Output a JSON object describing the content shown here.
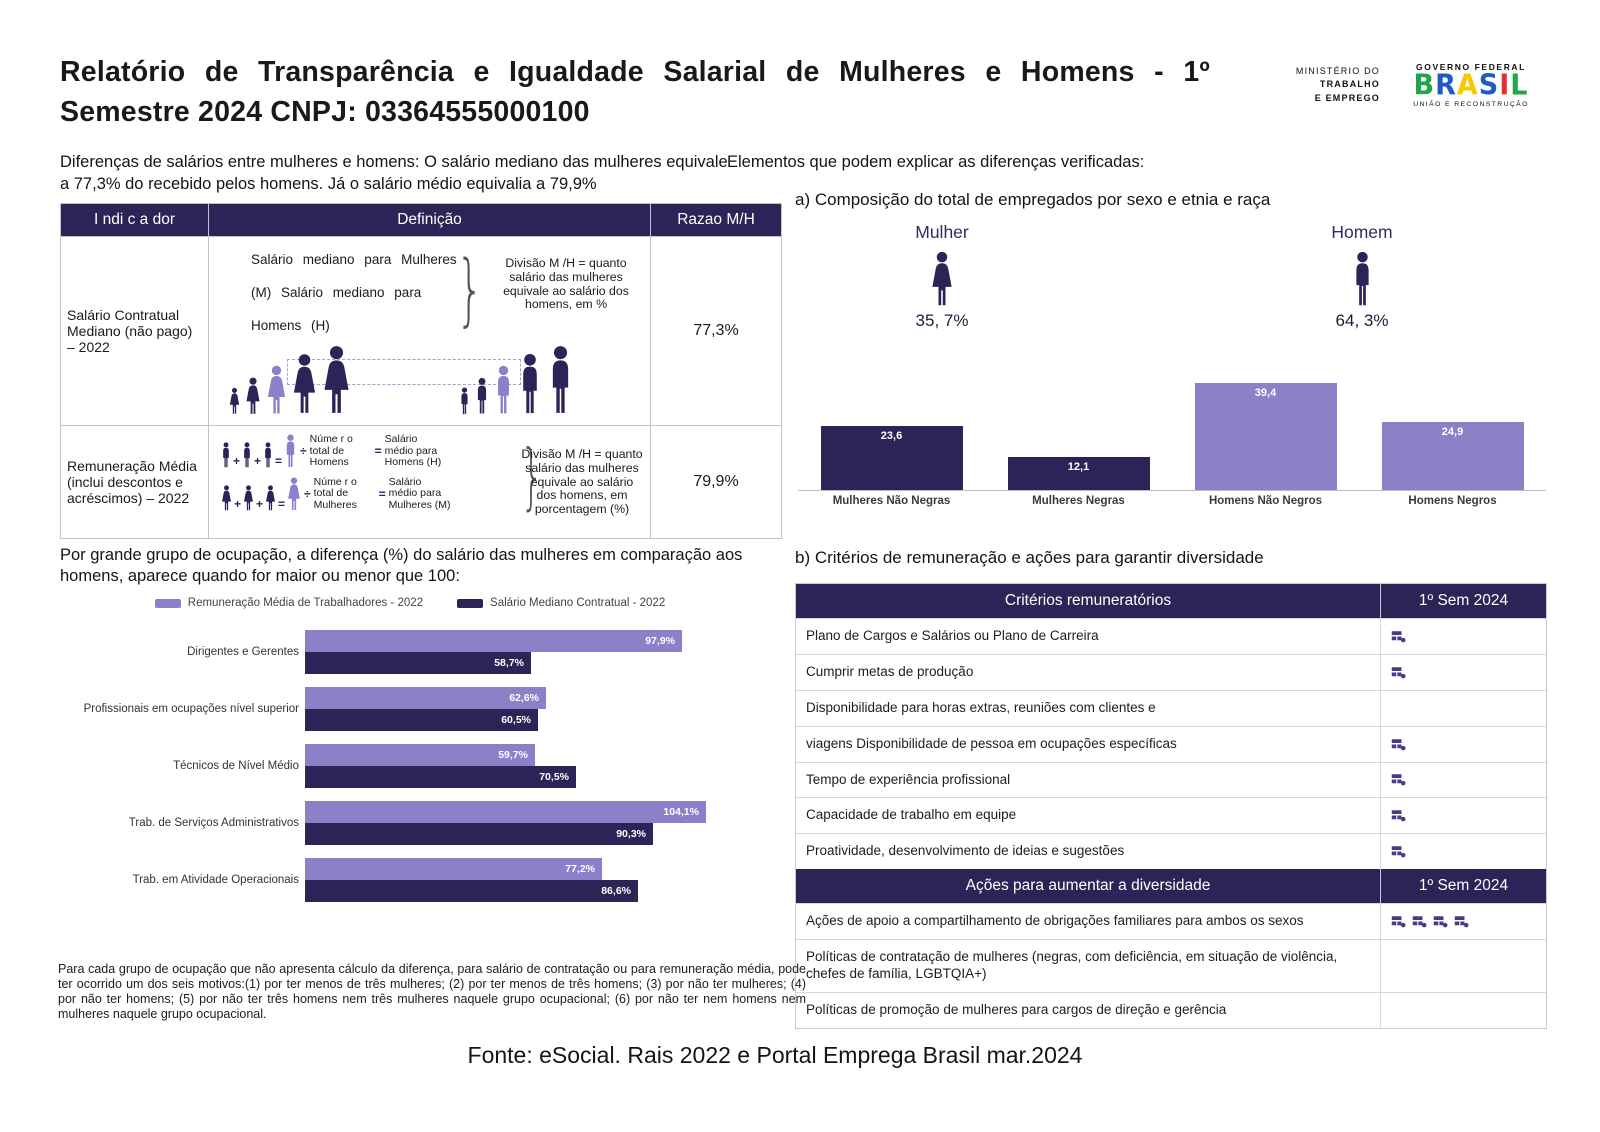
{
  "header": {
    "title": "Relatório de Transparência e Igualdade Salarial de Mulheres e Homens - 1º Semestre 2024 CNPJ: 03364555000100",
    "ministry": {
      "line1": "MINISTÉRIO DO",
      "line2": "TRABALHO",
      "line3": "E EMPREGO"
    },
    "gov": {
      "top": "GOVERNO FEDERAL",
      "name": "BRASIL",
      "bottom": "UNIÃO E RECONSTRUÇÃO"
    }
  },
  "intro": {
    "left": "Diferenças de salários entre mulheres e homens: O salário mediano das mulheres equivale a 77,3% do recebido pelos homens. Já o salário médio equivalia a 79,9%",
    "right": "Elementos que podem explicar as diferenças verificadas:"
  },
  "indicator_table": {
    "headers": [
      "I ndi c a dor",
      "Definição",
      "Razao M/H"
    ],
    "rows": [
      {
        "indicator": "Salário Contratual Mediano (não pago) – 2022",
        "definition_lines": [
          "Salário mediano para Mulheres",
          "(M) Salário mediano para",
          "Homens (H)"
        ],
        "explanation": "Divisão M /H = quanto salário das mulheres equivale ao salário dos homens, em %",
        "ratio": "77,3%"
      },
      {
        "indicator": "Remuneração Média (inclui descontos e acréscimos) – 2022",
        "eq": {
          "homens": {
            "divisor": "Núme r o total de Homens",
            "result": "Salário médio para Homens (H)"
          },
          "mulheres": {
            "divisor": "Núme r o total de Mulheres",
            "result": "Salário médio para Mulheres (M)"
          }
        },
        "explanation": "Divisão M /H = quanto salário das mulheres equivale ao salário dos homens, em porcentagem (%)",
        "ratio": "79,9%"
      }
    ]
  },
  "section_a": {
    "title": "a) Composição do total de empregados por sexo e etnia e raça",
    "mulher": {
      "label": "Mulher",
      "value": "35, 7%"
    },
    "homem": {
      "label": "Homem",
      "value": "64, 3%"
    }
  },
  "chart_data": [
    {
      "type": "bar",
      "title": "a) Composição do total de empregados por sexo e etnia e raça",
      "categories": [
        "Mulheres Não Negras",
        "Mulheres Negras",
        "Homens Não Negros",
        "Homens Negros"
      ],
      "values": [
        23.6,
        12.1,
        39.4,
        24.9
      ],
      "value_labels": [
        "23,6",
        "12,1",
        "39,4",
        "24,9"
      ],
      "bar_colors": [
        "#2e2357",
        "#2e2357",
        "#8c81c8",
        "#8c81c8"
      ],
      "xlabel": "",
      "ylabel": "",
      "ylim": [
        0,
        45
      ],
      "grid": false,
      "legend": false
    },
    {
      "type": "bar",
      "orientation": "horizontal-grouped",
      "categories": [
        "Dirigentes e Gerentes",
        "Profissionais em ocupações nível superior",
        "Técnicos de Nível Médio",
        "Trab. de Serviços Administrativos",
        "Trab. em Atividade Operacionais"
      ],
      "series": [
        {
          "name": "Remuneração Média de Trabalhadores - 2022",
          "color": "#8c81c8",
          "values": [
            97.9,
            62.6,
            59.7,
            104.1,
            77.2
          ],
          "labels": [
            "97,9%",
            "62,6%",
            "59,7%",
            "104,1%",
            "77,2%"
          ]
        },
        {
          "name": "Salário Mediano Contratual - 2022",
          "color": "#2e2357",
          "values": [
            58.7,
            60.5,
            70.5,
            90.3,
            86.6
          ],
          "labels": [
            "58,7%",
            "60,5%",
            "70,5%",
            "90,3%",
            "86,6%"
          ]
        }
      ],
      "xlim": [
        0,
        110
      ],
      "legend_position": "top"
    }
  ],
  "occupation": {
    "heading": "Por grande grupo de ocupação, a diferença (%) do salário das mulheres em comparação aos homens, aparece quando for maior ou menor que 100:"
  },
  "section_b": {
    "title": "b) Critérios de remuneração e ações para garantir diversidade",
    "criterios": {
      "header": "Critérios remuneratórios",
      "period": "1º Sem 2024",
      "rows": [
        {
          "label": "Plano de Cargos e Salários ou Plano de Carreira",
          "marks": 1
        },
        {
          "label": "Cumprir metas de produção",
          "marks": 1
        },
        {
          "label": "Disponibilidade para horas extras, reuniões com clientes e",
          "marks": 0
        },
        {
          "label": "viagens Disponibilidade de pessoa em ocupações específicas",
          "marks": 1
        },
        {
          "label": "Tempo de experiência profissional",
          "marks": 1
        },
        {
          "label": "Capacidade de trabalho em equipe",
          "marks": 1
        },
        {
          "label": "Proatividade, desenvolvimento de ideias e sugestões",
          "marks": 1
        }
      ]
    },
    "acoes": {
      "header": "Ações para aumentar a diversidade",
      "period": "1º Sem 2024",
      "rows": [
        {
          "label": "Ações de apoio a compartilhamento de obrigações familiares para ambos os sexos",
          "marks": 4
        },
        {
          "label": "Políticas de contratação de mulheres (negras, com deficiência, em situação de violência, chefes de família, LGBTQIA+)",
          "marks": 0
        },
        {
          "label": "Políticas de promoção de mulheres para cargos de direção e gerência",
          "marks": 0
        }
      ]
    }
  },
  "footnote": {
    "text": "Para cada grupo de ocupação que não apresenta cálculo da diferença, para salário de contratação ou para remuneração média, pode ter ocorrido um dos seis motivos:(1) por ter menos de três mulheres; (2) por ter menos de três homens; (3) por não ter mulheres; (4) por não ter homens; (5) por não ter três homens nem três mulheres naquele grupo ocupacional; (6) por não ter nem homens nem mulheres naquele grupo ocupacional.",
    "fonte": "Fonte: eSocial. Rais 2022 e Portal Emprega Brasil mar.2024"
  },
  "colors": {
    "accent_dark": "#2e2357",
    "accent_light": "#8c81c8",
    "mark_icon": "#473a8c"
  }
}
